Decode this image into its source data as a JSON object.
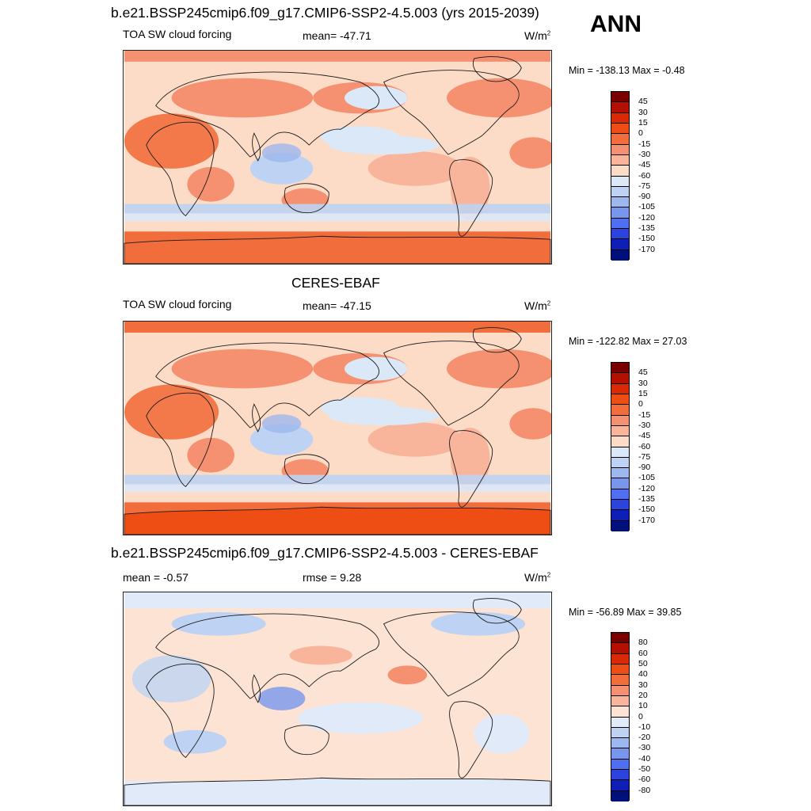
{
  "season": "ANN",
  "units": "W/m",
  "units_sup": "2",
  "panels": [
    {
      "title": "b.e21.BSSP245cmip6.f09_g17.CMIP6-SSP2-4.5.003 (yrs 2015-2039)",
      "variable": "TOA SW cloud forcing",
      "mean_text": "mean= -47.71",
      "minmax": "Min = -138.13 Max =  -0.48",
      "colorbar_labels": [
        "45",
        "30",
        "15",
        "0",
        "-15",
        "-30",
        "-45",
        "-60",
        "-75",
        "-90",
        "-105",
        "-120",
        "-135",
        "-150",
        "-170"
      ]
    },
    {
      "title": "CERES-EBAF",
      "variable": "TOA SW cloud forcing",
      "mean_text": "mean= -47.15",
      "minmax": "Min = -122.82 Max =  27.03",
      "colorbar_labels": [
        "45",
        "30",
        "15",
        "0",
        "-15",
        "-30",
        "-45",
        "-60",
        "-75",
        "-90",
        "-105",
        "-120",
        "-135",
        "-150",
        "-170"
      ]
    },
    {
      "title": "b.e21.BSSP245cmip6.f09_g17.CMIP6-SSP2-4.5.003 - CERES-EBAF",
      "mean_text": "mean =  -0.57",
      "rmse_text": "rmse =   9.28",
      "minmax": "Min = -56.89 Max =  39.85",
      "colorbar_labels": [
        "80",
        "60",
        "50",
        "40",
        "30",
        "20",
        "10",
        "0",
        "-10",
        "-20",
        "-30",
        "-40",
        "-50",
        "-60",
        "-80"
      ]
    }
  ],
  "colors": {
    "field_scale": [
      "#7a0000",
      "#b31000",
      "#d92a05",
      "#ee4d14",
      "#f26d3c",
      "#f59070",
      "#f9b59b",
      "#fcdcc7",
      "#dbe8f8",
      "#bed3f3",
      "#9db8ee",
      "#7896ec",
      "#4f6ff0",
      "#2a44dd",
      "#0e1fb8",
      "#00107a"
    ],
    "diff_scale": [
      "#7a0000",
      "#b31000",
      "#d92a05",
      "#ee4d14",
      "#f26d3c",
      "#f59070",
      "#f9b59b",
      "#fde3d3",
      "#e0eaf8",
      "#bed3f3",
      "#9db8ee",
      "#7896ec",
      "#4f6ff0",
      "#2a44dd",
      "#0e1fb8",
      "#00107a"
    ]
  }
}
